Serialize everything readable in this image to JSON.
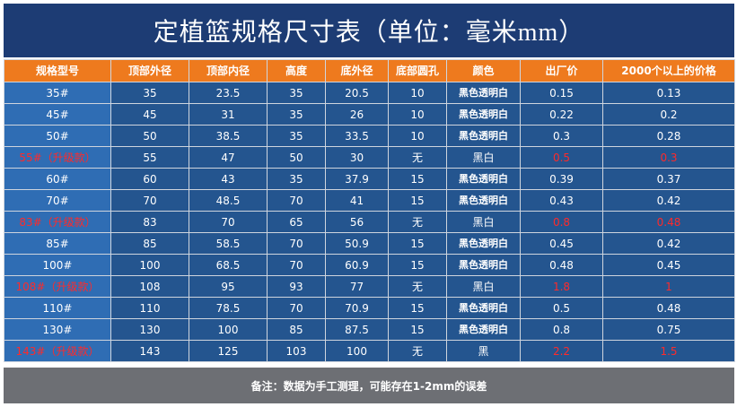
{
  "title": "定植篮规格尺寸表（单位：毫米mm）",
  "headers": [
    "规格型号",
    "顶部外径",
    "顶部内径",
    "高度",
    "底外径",
    "底部圆孔",
    "颜色",
    "出厂价",
    "2000个以上的价格"
  ],
  "rows": [
    {
      "model": "35#",
      "top_outer": "35",
      "top_inner": "23.5",
      "height": "35",
      "bottom_outer": "20.5",
      "hole": "10",
      "color": "黑色透明白",
      "price": "0.15",
      "bulk_price": "0.13",
      "upgrade": false
    },
    {
      "model": "45#",
      "top_outer": "45",
      "top_inner": "31",
      "height": "35",
      "bottom_outer": "26",
      "hole": "10",
      "color": "黑色透明白",
      "price": "0.22",
      "bulk_price": "0.2",
      "upgrade": false
    },
    {
      "model": "50#",
      "top_outer": "50",
      "top_inner": "38.5",
      "height": "35",
      "bottom_outer": "33.5",
      "hole": "10",
      "color": "黑色透明白",
      "price": "0.3",
      "bulk_price": "0.28",
      "upgrade": false
    },
    {
      "model": "55#（升级款）",
      "top_outer": "55",
      "top_inner": "47",
      "height": "50",
      "bottom_outer": "30",
      "hole": "无",
      "color": "黑白",
      "price": "0.5",
      "bulk_price": "0.3",
      "upgrade": true
    },
    {
      "model": "60#",
      "top_outer": "60",
      "top_inner": "43",
      "height": "35",
      "bottom_outer": "37.9",
      "hole": "15",
      "color": "黑色透明白",
      "price": "0.39",
      "bulk_price": "0.37",
      "upgrade": false
    },
    {
      "model": "70#",
      "top_outer": "70",
      "top_inner": "48.5",
      "height": "70",
      "bottom_outer": "41",
      "hole": "15",
      "color": "黑色透明白",
      "price": "0.43",
      "bulk_price": "0.42",
      "upgrade": false
    },
    {
      "model": "83#（升级款）",
      "top_outer": "83",
      "top_inner": "70",
      "height": "65",
      "bottom_outer": "56",
      "hole": "无",
      "color": "黑白",
      "price": "0.8",
      "bulk_price": "0.48",
      "upgrade": true
    },
    {
      "model": "85#",
      "top_outer": "85",
      "top_inner": "58.5",
      "height": "70",
      "bottom_outer": "50.9",
      "hole": "15",
      "color": "黑色透明白",
      "price": "0.45",
      "bulk_price": "0.42",
      "upgrade": false
    },
    {
      "model": "100#",
      "top_outer": "100",
      "top_inner": "68.5",
      "height": "70",
      "bottom_outer": "60.9",
      "hole": "15",
      "color": "黑色透明白",
      "price": "0.48",
      "bulk_price": "0.45",
      "upgrade": false
    },
    {
      "model": "108#（升级款）",
      "top_outer": "108",
      "top_inner": "95",
      "height": "93",
      "bottom_outer": "77",
      "hole": "无",
      "color": "黑白",
      "price": "1.8",
      "bulk_price": "1",
      "upgrade": true
    },
    {
      "model": "110#",
      "top_outer": "110",
      "top_inner": "78.5",
      "height": "70",
      "bottom_outer": "70.9",
      "hole": "15",
      "color": "黑色透明白",
      "price": "0.5",
      "bulk_price": "0.48",
      "upgrade": false
    },
    {
      "model": "130#",
      "top_outer": "130",
      "top_inner": "100",
      "height": "85",
      "bottom_outer": "87.5",
      "hole": "15",
      "color": "黑色透明白",
      "price": "0.8",
      "bulk_price": "0.75",
      "upgrade": false
    },
    {
      "model": "143#（升级款）",
      "top_outer": "143",
      "top_inner": "125",
      "height": "103",
      "bottom_outer": "100",
      "hole": "无",
      "color": "黑",
      "price": "2.2",
      "bulk_price": "1.5",
      "upgrade": true
    }
  ],
  "note": "备注：数据为手工测理，可能存在1-2mm的误差",
  "colors": {
    "title_bg": "#1d3c74",
    "header_bg": "#ee7a1e",
    "cell_bg": "#24558f",
    "model_bg": "#2f6db4",
    "highlight_text": "#ff2a2a",
    "note_bg": "#6d6f74"
  }
}
